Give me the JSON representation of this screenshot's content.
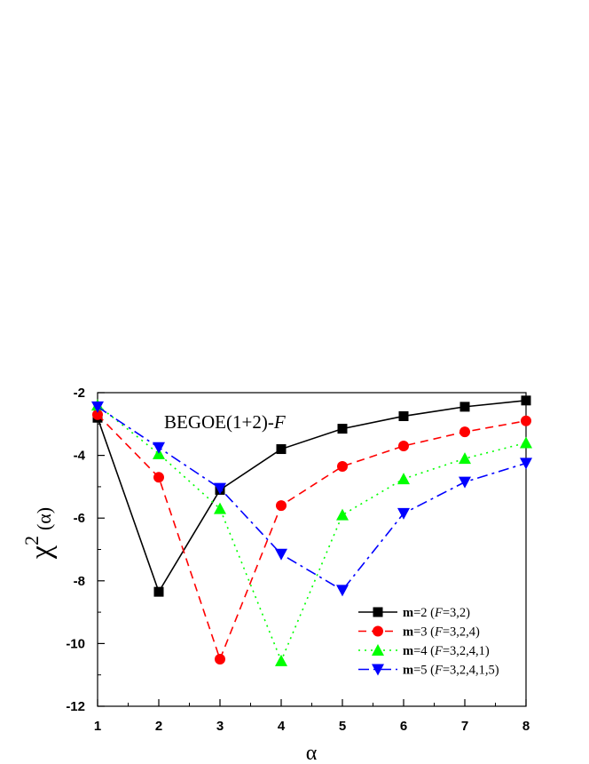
{
  "chart_data": {
    "type": "line",
    "xlabel": "α",
    "ylabel": "χ",
    "ylabel_superscript": "2",
    "ylabel_suffix": "(α)",
    "xlim": [
      1,
      8
    ],
    "ylim": [
      -12,
      -2
    ],
    "xticks": [
      1,
      2,
      3,
      4,
      5,
      6,
      7,
      8
    ],
    "yticks": [
      -12,
      -10,
      -8,
      -6,
      -4,
      -2
    ],
    "grid": false,
    "legend_position": "bottom-right",
    "annotation": {
      "text": "BEGOE(1+2)-",
      "italic_part": "F"
    },
    "x": [
      1,
      2,
      3,
      4,
      5,
      6,
      7,
      8
    ],
    "series": [
      {
        "name": "m=2 (F=3,2)",
        "label_bold": "m",
        "label_mid": "=2 (",
        "label_italic": "F",
        "label_end": "=3,2)",
        "color": "#000000",
        "marker": "square",
        "dash": "solid",
        "values": [
          -2.8,
          -8.35,
          -5.1,
          -3.8,
          -3.15,
          -2.75,
          -2.45,
          -2.25
        ]
      },
      {
        "name": "m=3 (F=3,2,4)",
        "label_bold": "m",
        "label_mid": "=3 (",
        "label_italic": "F",
        "label_end": "=3,2,4)",
        "color": "#ff0000",
        "marker": "circle",
        "dash": "dashed",
        "values": [
          -2.7,
          -4.7,
          -10.5,
          -5.6,
          -4.35,
          -3.7,
          -3.25,
          -2.9
        ]
      },
      {
        "name": "m=4 (F=3,2,4,1)",
        "label_bold": "m",
        "label_mid": "=4 (",
        "label_italic": "F",
        "label_end": "=3,2,4,1)",
        "color": "#00ff00",
        "marker": "triangle-up",
        "dash": "dotted",
        "values": [
          -2.4,
          -3.95,
          -5.7,
          -10.55,
          -5.9,
          -4.75,
          -4.1,
          -3.6
        ]
      },
      {
        "name": "m=5 (F=3,2,4,1,5)",
        "label_bold": "m",
        "label_mid": "=5 (",
        "label_italic": "F",
        "label_end": "=3,2,4,1,5)",
        "color": "#0000ff",
        "marker": "triangle-down",
        "dash": "dashdot",
        "values": [
          -2.45,
          -3.75,
          -5.05,
          -7.15,
          -8.3,
          -5.85,
          -4.85,
          -4.25
        ]
      }
    ]
  }
}
